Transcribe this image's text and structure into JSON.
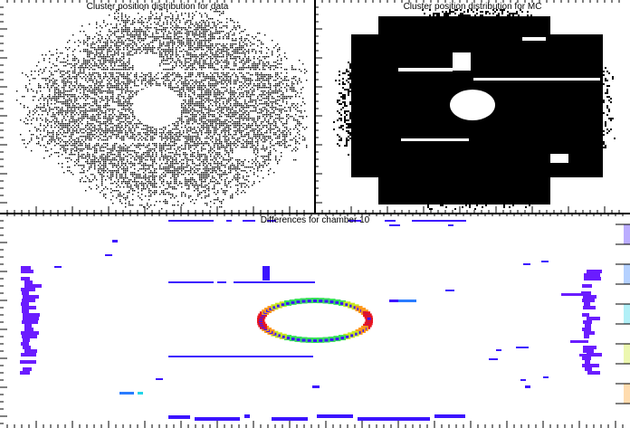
{
  "canvas": {
    "background": "#ffffff"
  },
  "panels": {
    "data": {
      "title": "Cluster position distribution for data"
    },
    "mc": {
      "title": "Cluster position distribution for MC"
    },
    "diff": {
      "title": "Differences for chamber 10"
    }
  },
  "chart_data": [
    {
      "type": "scatter",
      "title": "Cluster position distribution for data",
      "xlabel": "",
      "ylabel": "",
      "description_values": {
        "envelope": "rounded octagon, dense black occupancy",
        "holes": [
          {
            "shape": "circle",
            "cx": 0.5,
            "cy": 0.5,
            "r": 0.12
          },
          {
            "shape": "rect",
            "x": [
              0.45,
              0.53
            ],
            "y": [
              0.68,
              0.78
            ]
          },
          {
            "shape": "rect",
            "x": [
              0.72,
              0.8
            ],
            "y": [
              0.25,
              0.32
            ]
          }
        ],
        "gaps_horizontal_y": [
          0.32,
          0.62
        ],
        "gap_vertical_x": 0.49
      },
      "color": "#000000"
    },
    {
      "type": "scatter",
      "title": "Cluster position distribution for MC",
      "xlabel": "",
      "ylabel": "",
      "color": "#000000"
    },
    {
      "type": "heatmap",
      "title": "Differences for chamber 10",
      "xlabel": "",
      "ylabel": "",
      "palette": [
        "#3c14ff",
        "#2a7cff",
        "#22d4e8",
        "#39e05a",
        "#c8e81e",
        "#ff9a1a",
        "#e8141e"
      ],
      "colorbar_levels": 10
    }
  ]
}
